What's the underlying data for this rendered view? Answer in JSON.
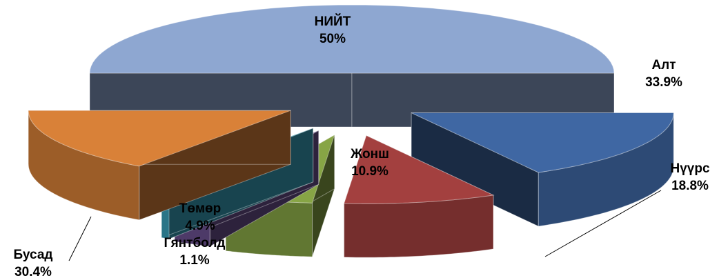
{
  "chart_data": {
    "type": "pie",
    "categories": [
      "НИЙТ",
      "Алт",
      "Нүүрс",
      "Жонш",
      "Төмөр",
      "Гянтболд",
      "Бусад"
    ],
    "values": [
      50,
      33.9,
      18.8,
      10.9,
      4.9,
      1.1,
      30.4
    ],
    "value_labels": [
      "50%",
      "33.9%",
      "18.8%",
      "10.9%",
      "4.9%",
      "1.1%",
      "30.4%"
    ],
    "colors": [
      "#8ea7d1",
      "#3f67a3",
      "#a3403f",
      "#87a545",
      "#6b5190",
      "#3aa3bb",
      "#d98138"
    ]
  }
}
